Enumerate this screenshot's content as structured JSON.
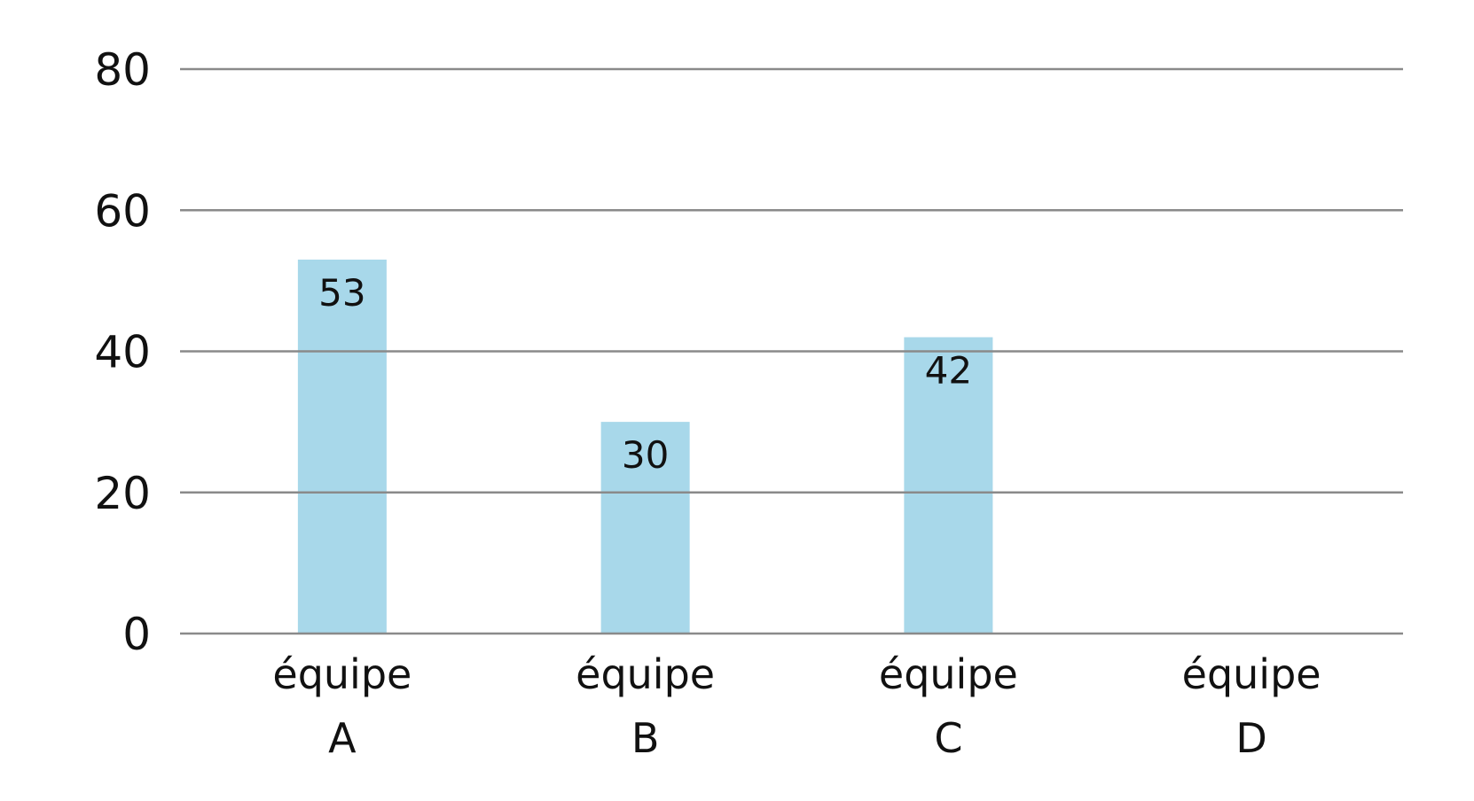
{
  "chart_data": {
    "type": "bar",
    "categories": [
      [
        "équipe",
        "A"
      ],
      [
        "équipe",
        "B"
      ],
      [
        "équipe",
        "C"
      ],
      [
        "équipe",
        "D"
      ]
    ],
    "values": [
      53,
      30,
      42,
      null
    ],
    "data_labels": [
      "53",
      "30",
      "42",
      ""
    ],
    "y_ticks": [
      "0",
      "20",
      "40",
      "60",
      "80"
    ],
    "ylim": [
      0,
      80
    ],
    "grid": true,
    "bar_color": "#a8d8ea",
    "grid_color": "#8a8a8a",
    "text_color": "#111111"
  }
}
